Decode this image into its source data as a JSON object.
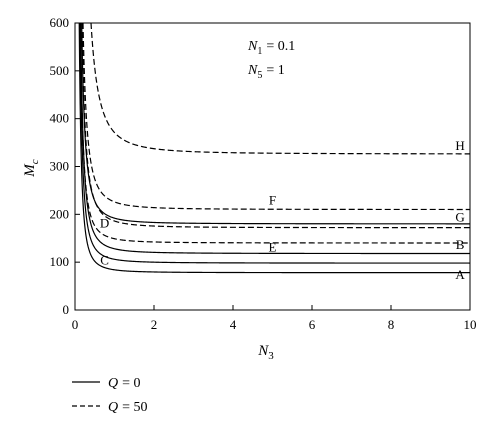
{
  "chart_data": {
    "type": "line",
    "xlabel": "N",
    "xlabel_sub": "3",
    "ylabel": "M",
    "ylabel_sub": "c",
    "xlim": [
      0,
      10
    ],
    "ylim": [
      0,
      600
    ],
    "xticks": [
      0,
      2,
      4,
      6,
      8,
      10
    ],
    "yticks": [
      0,
      100,
      200,
      300,
      400,
      500,
      600
    ],
    "grid": false,
    "params": [
      {
        "name": "N",
        "sub": "1",
        "value": "= 0.1"
      },
      {
        "name": "N",
        "sub": "5",
        "value": "= 1"
      }
    ],
    "legend": [
      {
        "symbol": "Q",
        "text": "= 0",
        "style": "solid"
      },
      {
        "symbol": "Q",
        "text": "= 50",
        "style": "dashed"
      }
    ],
    "curves": [
      {
        "label": "A",
        "style": "solid",
        "asymptote": 78,
        "k": 6
      },
      {
        "label": "B",
        "style": "dashed",
        "asymptote": 140,
        "k": 9
      },
      {
        "label": "C",
        "style": "solid",
        "asymptote": 98,
        "k": 8
      },
      {
        "label": "D",
        "style": "dashed",
        "asymptote": 172,
        "k": 14
      },
      {
        "label": "E",
        "style": "solid",
        "asymptote": 118,
        "k": 10
      },
      {
        "label": "F",
        "style": "dashed",
        "asymptote": 210,
        "k": 16
      },
      {
        "label": "G",
        "style": "solid",
        "asymptote": 180,
        "k": 12
      },
      {
        "label": "H",
        "style": "dashed",
        "asymptote": 326,
        "k": 45
      }
    ],
    "curve_labels": [
      {
        "text": "A",
        "x": 9.75,
        "y": 65
      },
      {
        "text": "B",
        "x": 9.75,
        "y": 128
      },
      {
        "text": "C",
        "x": 0.75,
        "y": 95
      },
      {
        "text": "D",
        "x": 0.75,
        "y": 172
      },
      {
        "text": "E",
        "x": 5.0,
        "y": 122
      },
      {
        "text": "F",
        "x": 5.0,
        "y": 221
      },
      {
        "text": "G",
        "x": 9.75,
        "y": 185
      },
      {
        "text": "H",
        "x": 9.75,
        "y": 335
      }
    ]
  }
}
